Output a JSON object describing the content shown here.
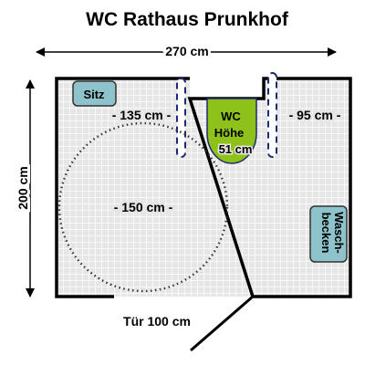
{
  "title": "WC Rathaus Prunkhof",
  "dimensions": {
    "width": "270 cm",
    "depth": "200 cm",
    "left_clearance": "- 135 cm -",
    "right_clearance": "- 95 cm -",
    "turning_circle": "- 150 cm -",
    "door": "Tür 100 cm"
  },
  "fixtures": {
    "seat": "Sitz",
    "wc_line1": "WC",
    "wc_line2": "Höhe",
    "wc_line3": "51 cm",
    "sink_line1": "Wasch-",
    "sink_line2": "becken"
  },
  "colors": {
    "floor_tile": "#e6e6e6",
    "grout": "#ffffff",
    "wall": "#000000",
    "wc_fill": "#8ec21a",
    "fixture_fill": "#8fc3cc",
    "grab_bar": "#1c2b6e"
  }
}
